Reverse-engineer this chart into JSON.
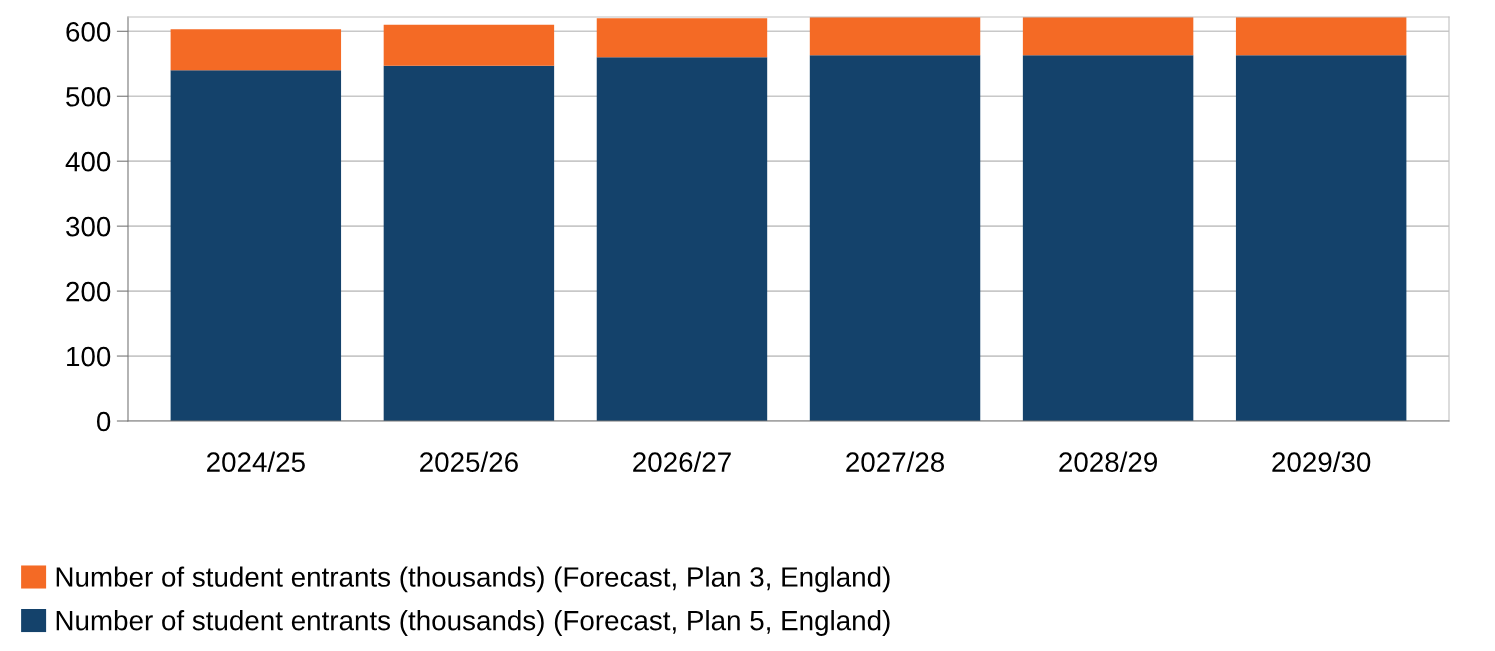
{
  "chart_data": {
    "type": "bar",
    "stacked": true,
    "categories": [
      "2024/25",
      "2025/26",
      "2026/27",
      "2027/28",
      "2028/29",
      "2029/30"
    ],
    "series": [
      {
        "name": "Number of student entrants (thousands) (Forecast, Plan 5, England)",
        "color": "#14426b",
        "values": [
          540,
          547,
          560,
          563,
          563,
          563
        ]
      },
      {
        "name": "Number of student entrants (thousands) (Forecast, Plan 3, England)",
        "color": "#f46a25",
        "values": [
          63,
          63,
          60,
          59,
          59,
          59
        ]
      }
    ],
    "ylim": [
      0,
      622
    ],
    "yticks": [
      0,
      100,
      200,
      300,
      400,
      500,
      600
    ],
    "grid": "y",
    "legend": "bottom"
  }
}
